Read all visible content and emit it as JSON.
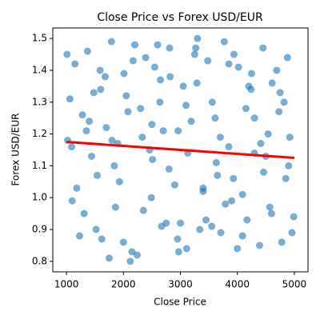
{
  "chart_data": {
    "type": "scatter",
    "title": "Close Price vs Forex USD/EUR",
    "xlabel": "Close Price",
    "ylabel": "Forex USD/EUR",
    "xlim": [
      760,
      5240
    ],
    "ylim": [
      0.767,
      1.533
    ],
    "xticks": [
      1000,
      2000,
      3000,
      4000,
      5000
    ],
    "yticks": [
      0.8,
      0.9,
      {
        "value": 1.0,
        "label": "1.0"
      },
      1.1,
      1.2,
      1.3,
      1.4,
      1.5
    ],
    "color": "#1f77b4",
    "x": [
      1020,
      1150,
      1310,
      1480,
      1620,
      1790,
      1930,
      2080,
      2240,
      2390,
      2510,
      2670,
      2820,
      2960,
      3110,
      3270,
      3400,
      3560,
      3710,
      3850,
      4020,
      4170,
      4300,
      4460,
      4610,
      4780,
      4920,
      1060,
      1230,
      1370,
      1540,
      1700,
      1860,
      2010,
      2150,
      2300,
      2460,
      2600,
      2750,
      2900,
      3050,
      3190,
      3340,
      3480,
      3630,
      3790,
      3940,
      4090,
      4240,
      4390,
      4540,
      4690,
      4850,
      4990,
      1100,
      1280,
      1440,
      1590,
      1750,
      1900,
      2050,
      2200,
      2350,
      2500,
      2650,
      2800,
      2950,
      3100,
      3250,
      3400,
      3550,
      3700,
      3850,
      4000,
      4150,
      4300,
      4450,
      4600,
      4750,
      4900,
      1010,
      1180,
      1350,
      1520,
      1680,
      1840,
      2000,
      2170,
      2330,
      2490,
      2640,
      2810,
      2970,
      3130,
      3290,
      3450,
      3610,
      3770,
      3930,
      4090,
      4250,
      4410,
      4570,
      4730,
      4880,
      1090,
      1600,
      2120,
      2700,
      3300,
      3900,
      4500,
      4960,
      1400,
      2550,
      3650,
      4820,
      1800,
      3000,
      4200
    ],
    "values": [
      1.18,
      1.42,
      0.95,
      1.33,
      0.87,
      1.49,
      1.05,
      1.27,
      0.82,
      1.44,
      1.12,
      0.91,
      1.38,
      1.21,
      0.84,
      1.47,
      1.02,
      1.3,
      0.89,
      1.16,
      1.41,
      0.93,
      1.25,
      1.08,
      1.36,
      0.86,
      1.19,
      1.31,
      0.88,
      1.46,
      1.07,
      1.22,
      0.97,
      1.39,
      0.83,
      1.28,
      1.15,
      1.48,
      0.92,
      1.04,
      1.35,
      1.24,
      0.9,
      1.43,
      1.11,
      0.98,
      1.45,
      1.01,
      1.34,
      0.85,
      1.2,
      1.4,
      1.06,
      0.94,
      0.99,
      1.26,
      1.13,
      1.4,
      0.81,
      1.17,
      1.32,
      1.48,
      0.96,
      1.23,
      1.37,
      1.09,
      0.87,
      1.29,
      1.45,
      1.03,
      0.91,
      1.19,
      1.42,
      0.84,
      1.28,
      1.14,
      1.47,
      0.95,
      1.33,
      1.1,
      1.45,
      1.03,
      1.21,
      0.9,
      1.38,
      1.1,
      0.86,
      1.43,
      1.19,
      1.0,
      1.3,
      1.47,
      0.83,
      1.14,
      1.36,
      0.93,
      1.25,
      1.49,
      1.06,
      0.88,
      1.39,
      1.17,
      0.97,
      1.27,
      1.44,
      1.16,
      1.34,
      0.8,
      1.21,
      1.5,
      0.99,
      1.13,
      0.89,
      1.24,
      1.41,
      1.07,
      1.3,
      1.18,
      0.92,
      1.35
    ],
    "trend": {
      "x": [
        1000,
        5000
      ],
      "values": [
        1.175,
        1.125
      ],
      "color": "red"
    }
  }
}
